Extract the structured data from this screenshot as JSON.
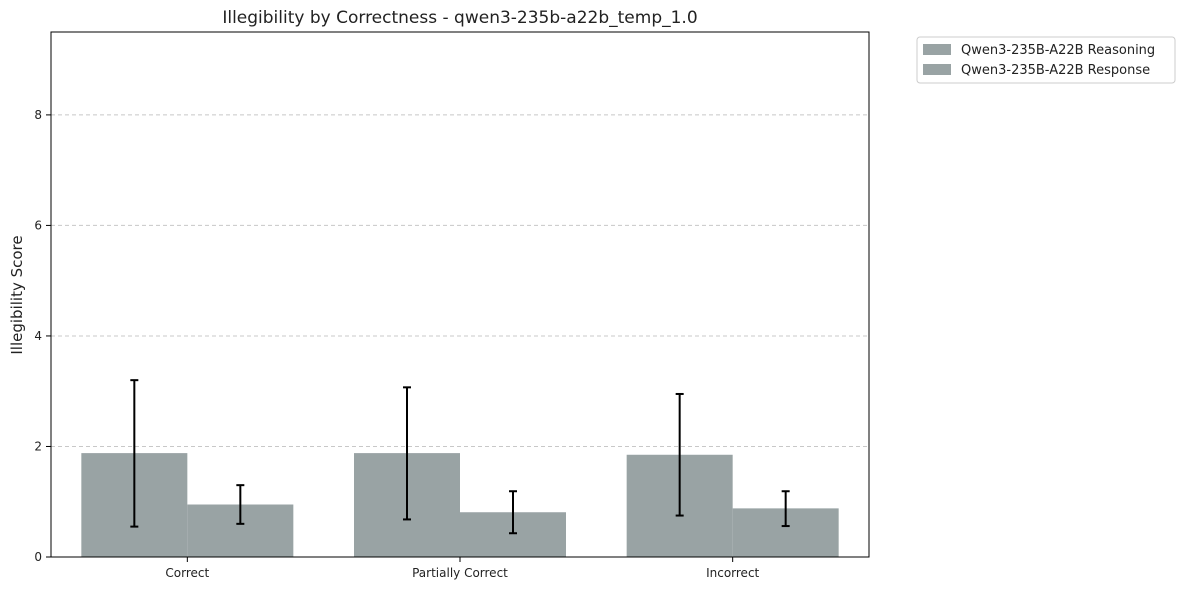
{
  "chart_data": {
    "type": "bar",
    "title": "Illegibility by Correctness - qwen3-235b-a22b_temp_1.0",
    "xlabel": "",
    "ylabel": "Illegibility Score",
    "categories": [
      "Correct",
      "Partially Correct",
      "Incorrect"
    ],
    "ylim": [
      0,
      9.5
    ],
    "yticks": [
      0,
      2,
      4,
      6,
      8
    ],
    "grid": true,
    "legend_position": "outside-top-right",
    "bar_color": "#99a3a4",
    "series": [
      {
        "name": "Qwen3-235B-A22B Reasoning",
        "values": [
          1.88,
          1.88,
          1.85
        ],
        "err_low": [
          0.55,
          0.68,
          0.75
        ],
        "err_high": [
          3.2,
          3.07,
          2.95
        ]
      },
      {
        "name": "Qwen3-235B-A22B Response",
        "values": [
          0.95,
          0.81,
          0.88
        ],
        "err_low": [
          0.6,
          0.43,
          0.56
        ],
        "err_high": [
          1.3,
          1.19,
          1.19
        ]
      }
    ]
  }
}
